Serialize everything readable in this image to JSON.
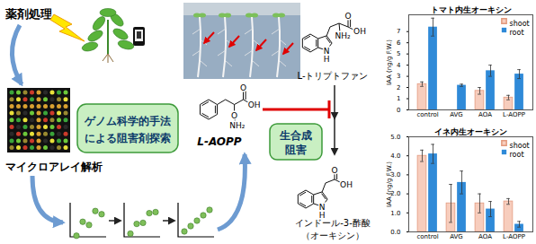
{
  "diagram": {
    "treatment_label": "薬剤処理",
    "microarray_label": "マイクロアレイ解析",
    "search_box": [
      "ゲノム科学的手法",
      "による阻害剤探索"
    ],
    "inhibition_box": [
      "生合成",
      "阻害"
    ],
    "compounds": {
      "tryptophan": {
        "name": "L-トリプトファン",
        "atoms": [
          "O",
          "OH",
          "NH₂",
          "N",
          "H"
        ]
      },
      "inhibitor": {
        "name": "L-AOPP",
        "atoms": [
          "O",
          "OH",
          "O",
          "NH₂"
        ]
      },
      "auxin": {
        "name": [
          "インドール-3-酢酸",
          "（オーキシン）"
        ],
        "atoms": [
          "O",
          "OH",
          "N",
          "H"
        ]
      }
    }
  },
  "chart_data": [
    {
      "type": "bar",
      "title": "トマト内生オーキシン",
      "ylabel": "IAA (ng/g F.W.)",
      "categories": [
        "control",
        "AVG",
        "AOA",
        "L-AOPP"
      ],
      "series": [
        {
          "name": "shoot",
          "color": "#f7cdbd",
          "values": [
            2.3,
            null,
            1.7,
            1.1
          ],
          "errors": [
            0.2,
            null,
            0.3,
            0.2
          ]
        },
        {
          "name": "root",
          "color": "#2f8ad8",
          "values": [
            7.4,
            2.2,
            3.5,
            3.2
          ],
          "errors": [
            0.8,
            0.1,
            0.5,
            0.4
          ]
        }
      ],
      "ylim": [
        0,
        8.5
      ],
      "yticks": [
        0,
        1,
        2,
        3,
        4,
        5,
        6,
        7
      ],
      "legend": "top-right"
    },
    {
      "type": "bar",
      "title": "イネ内生オーキシン",
      "ylabel": "IAA (ng/g F.W.)",
      "categories": [
        "control",
        "AVG",
        "AOA",
        "L-AOPP"
      ],
      "series": [
        {
          "name": "shoot",
          "color": "#f7cdbd",
          "values": [
            4.0,
            1.5,
            1.5,
            1.6
          ],
          "errors": [
            0.3,
            1.0,
            0.5,
            0.15
          ]
        },
        {
          "name": "root",
          "color": "#2f8ad8",
          "values": [
            4.1,
            2.6,
            1.2,
            0.4
          ],
          "errors": [
            0.5,
            0.6,
            0.4,
            0.15
          ]
        }
      ],
      "ylim": [
        0,
        5
      ],
      "yticks": [
        0,
        1,
        2,
        3,
        4,
        5
      ],
      "legend": "top-right"
    }
  ]
}
